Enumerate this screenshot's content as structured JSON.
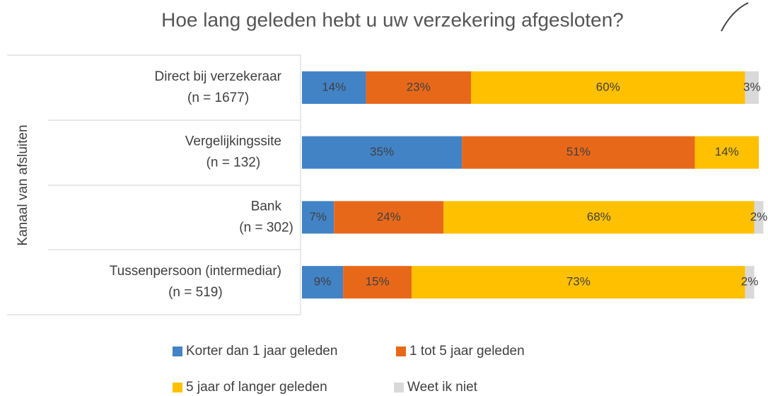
{
  "chart_data": {
    "type": "stacked-bar-horizontal",
    "title": "Hoe lang geleden hebt u uw verzekering afgesloten?",
    "y_label": "Kanaal van afsluiten",
    "categories": [
      [
        "Direct bij verzekeraar",
        "(n = 1677)"
      ],
      [
        "Vergelijkingssite",
        "(n = 132)"
      ],
      [
        "Bank",
        "(n = 302)"
      ],
      [
        "Tussenpersoon (intermediar)",
        "(n = 519)"
      ]
    ],
    "xlim": [
      0,
      100
    ],
    "series": [
      {
        "name": "Korter dan 1 jaar geleden",
        "color": "#4283c6",
        "values": [
          14,
          35,
          7,
          9
        ],
        "value_labels": [
          "14%",
          "35%",
          "7%",
          "9%"
        ]
      },
      {
        "name": "1 tot 5 jaar geleden",
        "color": "#e8681a",
        "values": [
          23,
          51,
          24,
          15
        ],
        "value_labels": [
          "23%",
          "51%",
          "24%",
          "15%"
        ]
      },
      {
        "name": "5 jaar of langer geleden",
        "color": "#ffc000",
        "values": [
          60,
          14,
          68,
          73
        ],
        "value_labels": [
          "60%",
          "14%",
          "68%",
          "73%"
        ]
      },
      {
        "name": "Weet ik niet",
        "color": "#d9d9d9",
        "values": [
          3,
          null,
          2,
          2
        ],
        "value_labels": [
          "3%",
          null,
          "2%",
          "2%"
        ]
      }
    ]
  }
}
